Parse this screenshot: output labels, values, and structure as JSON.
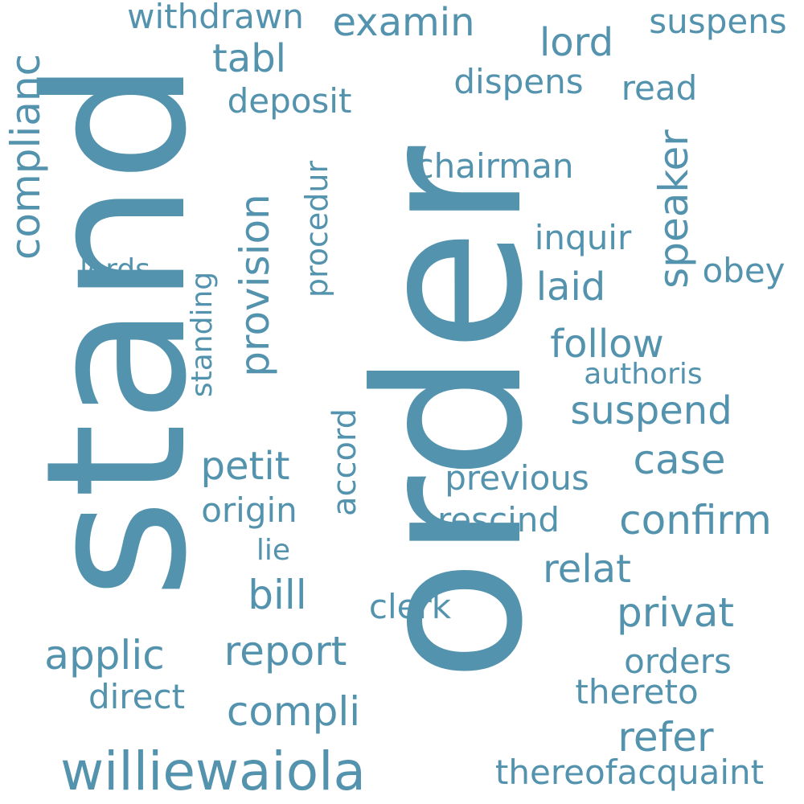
{
  "cloud": {
    "text_color": "#5493AE",
    "background": "#FFFFFF",
    "words": [
      {
        "text": "order",
        "vertical": true
      },
      {
        "text": "stand",
        "vertical": true
      },
      {
        "text": "williewaiola",
        "vertical": false
      },
      {
        "text": "compli",
        "vertical": false
      },
      {
        "text": "applic",
        "vertical": false
      },
      {
        "text": "report",
        "vertical": false
      },
      {
        "text": "refer",
        "vertical": false
      },
      {
        "text": "privat",
        "vertical": false
      },
      {
        "text": "confirm",
        "vertical": false
      },
      {
        "text": "case",
        "vertical": false
      },
      {
        "text": "bill",
        "vertical": false
      },
      {
        "text": "provision",
        "vertical": true
      },
      {
        "text": "speaker",
        "vertical": true
      },
      {
        "text": "examin",
        "vertical": false
      },
      {
        "text": "lord",
        "vertical": false
      },
      {
        "text": "follow",
        "vertical": false
      },
      {
        "text": "suspend",
        "vertical": false
      },
      {
        "text": "relat",
        "vertical": false
      },
      {
        "text": "laid",
        "vertical": false
      },
      {
        "text": "petit",
        "vertical": false
      },
      {
        "text": "tabl",
        "vertical": false
      },
      {
        "text": "thereofacquaint",
        "vertical": false
      },
      {
        "text": "read",
        "vertical": false
      },
      {
        "text": "origin",
        "vertical": false
      },
      {
        "text": "rescind",
        "vertical": false
      },
      {
        "text": "orders",
        "vertical": false
      },
      {
        "text": "previous",
        "vertical": false
      },
      {
        "text": "chairman",
        "vertical": false
      },
      {
        "text": "deposit",
        "vertical": false
      },
      {
        "text": "dispens",
        "vertical": false
      },
      {
        "text": "direct",
        "vertical": false
      },
      {
        "text": "thereto",
        "vertical": false
      },
      {
        "text": "clerk",
        "vertical": false
      },
      {
        "text": "suspens",
        "vertical": false
      },
      {
        "text": "withdrawn",
        "vertical": false
      },
      {
        "text": "obey",
        "vertical": false
      },
      {
        "text": "inquir",
        "vertical": false
      },
      {
        "text": "authoris",
        "vertical": false
      },
      {
        "text": "lords",
        "vertical": false
      },
      {
        "text": "lie",
        "vertical": false
      },
      {
        "text": "complianc",
        "vertical": true
      },
      {
        "text": "procedur",
        "vertical": true
      },
      {
        "text": "accord",
        "vertical": true
      },
      {
        "text": "standing",
        "vertical": true
      }
    ]
  }
}
